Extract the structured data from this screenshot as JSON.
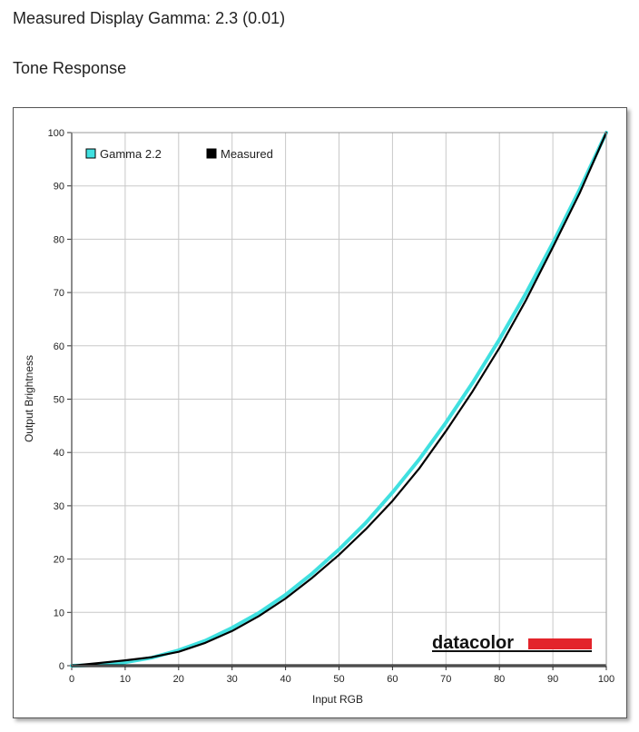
{
  "page": {
    "measured_gamma_text": "Measured Display Gamma: 2.3 (0.01)",
    "section_title": "Tone Response"
  },
  "logo": {
    "text": "datacolor",
    "accent_color": "#e3242b"
  },
  "colors": {
    "reference": "#40e0e0",
    "measured": "#000000",
    "grid": "#c8c8c8"
  },
  "chart_data": {
    "type": "line",
    "xlabel": "Input RGB",
    "ylabel": "Output Brightness",
    "xlim": [
      0,
      100
    ],
    "ylim": [
      0,
      100
    ],
    "xticks": [
      "0",
      "10",
      "20",
      "30",
      "40",
      "50",
      "60",
      "70",
      "80",
      "90",
      "100"
    ],
    "yticks": [
      "0",
      "10",
      "20",
      "30",
      "40",
      "50",
      "60",
      "70",
      "80",
      "90",
      "100"
    ],
    "grid": true,
    "legend_position": "top-left",
    "series": [
      {
        "name": "Gamma 2.2",
        "color": "#40e0e0",
        "gamma": 2.2,
        "x": [
          0,
          5,
          10,
          15,
          20,
          25,
          30,
          35,
          40,
          45,
          50,
          55,
          60,
          65,
          70,
          75,
          80,
          85,
          90,
          95,
          100
        ],
        "y": [
          0,
          0.14,
          0.63,
          1.5,
          2.9,
          4.7,
          7.1,
          9.9,
          13.3,
          17.3,
          21.8,
          26.8,
          32.5,
          38.7,
          45.6,
          53.1,
          61.2,
          69.9,
          79.3,
          89.3,
          100
        ]
      },
      {
        "name": "Measured",
        "color": "#000000",
        "gamma": 2.3,
        "x": [
          0,
          5,
          10,
          15,
          20,
          25,
          30,
          35,
          40,
          45,
          50,
          55,
          60,
          65,
          70,
          75,
          80,
          85,
          90,
          95,
          100
        ],
        "y": [
          0,
          0.5,
          1.0,
          1.6,
          2.6,
          4.3,
          6.5,
          9.3,
          12.6,
          16.5,
          20.8,
          25.6,
          30.9,
          37.0,
          44.0,
          51.5,
          59.6,
          68.6,
          78.5,
          88.6,
          100
        ]
      }
    ]
  }
}
